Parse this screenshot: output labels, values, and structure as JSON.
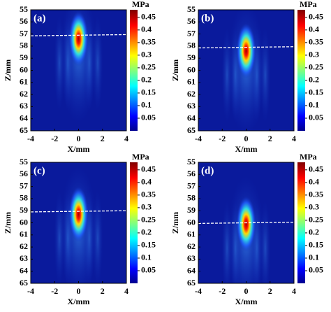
{
  "chart_data": [
    {
      "type": "heatmap",
      "label": "(a)",
      "xlabel": "X/mm",
      "ylabel": "Z/mm",
      "colorbar_label": "MPa",
      "xlim": [
        -4,
        4
      ],
      "xticks": [
        -4,
        -2,
        0,
        2,
        4
      ],
      "ylim": [
        55,
        65
      ],
      "yticks": [
        55,
        56,
        57,
        58,
        59,
        60,
        61,
        62,
        63,
        64,
        65
      ],
      "clim": [
        0,
        0.48
      ],
      "cticks": [
        0.05,
        0.1,
        0.15,
        0.2,
        0.25,
        0.3,
        0.35,
        0.4,
        0.45
      ],
      "focus": {
        "x": 0,
        "z": 57.4,
        "peak": 0.46
      },
      "line": {
        "x": [
          -4,
          4
        ],
        "z": [
          57.15,
          57.05
        ]
      }
    },
    {
      "type": "heatmap",
      "label": "(b)",
      "xlabel": "X/mm",
      "ylabel": "Z/mm",
      "colorbar_label": "MPa",
      "xlim": [
        -4,
        4
      ],
      "xticks": [
        -4,
        -2,
        0,
        2,
        4
      ],
      "ylim": [
        55,
        65
      ],
      "yticks": [
        55,
        56,
        57,
        58,
        59,
        60,
        61,
        62,
        63,
        64,
        65
      ],
      "clim": [
        0,
        0.48
      ],
      "cticks": [
        0.05,
        0.1,
        0.15,
        0.2,
        0.25,
        0.3,
        0.35,
        0.4,
        0.45
      ],
      "focus": {
        "x": 0,
        "z": 58.4,
        "peak": 0.46
      },
      "line": {
        "x": [
          -4,
          4
        ],
        "z": [
          58.15,
          58.05
        ]
      }
    },
    {
      "type": "heatmap",
      "label": "(c)",
      "xlabel": "X/mm",
      "ylabel": "Z/mm",
      "colorbar_label": "MPa",
      "xlim": [
        -4,
        4
      ],
      "xticks": [
        -4,
        -2,
        0,
        2,
        4
      ],
      "ylim": [
        55,
        65
      ],
      "yticks": [
        55,
        56,
        57,
        58,
        59,
        60,
        61,
        62,
        63,
        64,
        65
      ],
      "clim": [
        0,
        0.48
      ],
      "cticks": [
        0.05,
        0.1,
        0.15,
        0.2,
        0.25,
        0.3,
        0.35,
        0.4,
        0.45
      ],
      "focus": {
        "x": 0,
        "z": 59.3,
        "peak": 0.46
      },
      "line": {
        "x": [
          -4,
          4
        ],
        "z": [
          59.1,
          59.0
        ]
      }
    },
    {
      "type": "heatmap",
      "label": "(d)",
      "xlabel": "X/mm",
      "ylabel": "Z/mm",
      "colorbar_label": "MPa",
      "xlim": [
        -4,
        4
      ],
      "xticks": [
        -4,
        -2,
        0,
        2,
        4
      ],
      "ylim": [
        55,
        65
      ],
      "yticks": [
        55,
        56,
        57,
        58,
        59,
        60,
        61,
        62,
        63,
        64,
        65
      ],
      "clim": [
        0,
        0.48
      ],
      "cticks": [
        0.05,
        0.1,
        0.15,
        0.2,
        0.25,
        0.3,
        0.35,
        0.4,
        0.45
      ],
      "focus": {
        "x": 0,
        "z": 60.1,
        "peak": 0.46
      },
      "line": {
        "x": [
          -4,
          4
        ],
        "z": [
          60.05,
          59.95
        ]
      }
    }
  ]
}
